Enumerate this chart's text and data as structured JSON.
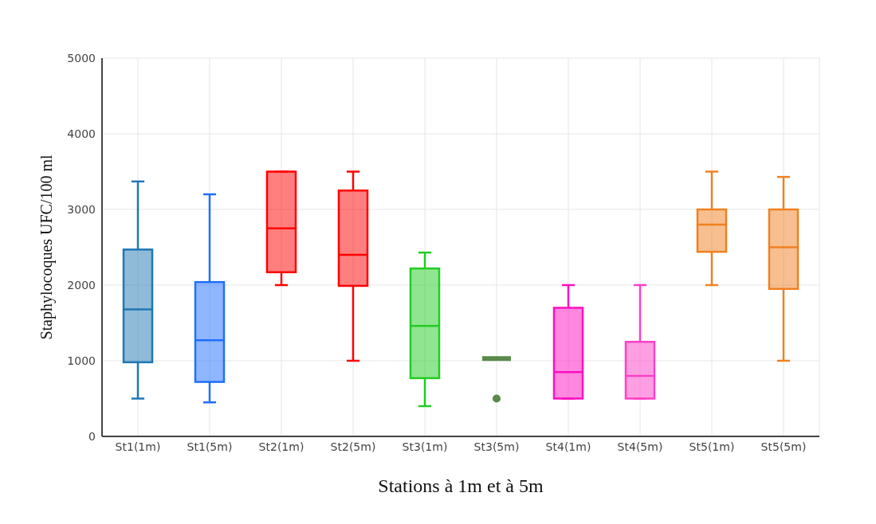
{
  "chart_data": {
    "type": "box",
    "xlabel": "Stations à 1m et à 5m",
    "ylabel": "Staphylocoques UFC/100 ml",
    "categories": [
      "St1(1m)",
      "St1(5m)",
      "St2(1m)",
      "St2(5m)",
      "St3(1m)",
      "St3(5m)",
      "St4(1m)",
      "St4(5m)",
      "St5(1m)",
      "St5(5m)"
    ],
    "colors": [
      "#1f77b4",
      "#1f6fff",
      "#ff0000",
      "#ff0000",
      "#22cc22",
      "#5a8a4a",
      "#ff10c0",
      "#ff40c8",
      "#f08020",
      "#f08020"
    ],
    "boxes": [
      {
        "low": 500,
        "q1": 980,
        "median": 1680,
        "q3": 2470,
        "high": 3370
      },
      {
        "low": 450,
        "q1": 720,
        "median": 1270,
        "q3": 2040,
        "high": 3200
      },
      {
        "low": 2000,
        "q1": 2170,
        "median": 2750,
        "q3": 3500,
        "high": 3500
      },
      {
        "low": 1000,
        "q1": 1990,
        "median": 2400,
        "q3": 3250,
        "high": 3500
      },
      {
        "low": 400,
        "q1": 770,
        "median": 1460,
        "q3": 2220,
        "high": 2430
      },
      {
        "low": 1030,
        "q1": 1030,
        "median": 1030,
        "q3": 1030,
        "high": 1030,
        "outliers": [
          500
        ]
      },
      {
        "low": 500,
        "q1": 500,
        "median": 850,
        "q3": 1700,
        "high": 2000
      },
      {
        "low": 500,
        "q1": 500,
        "median": 800,
        "q3": 1250,
        "high": 2000
      },
      {
        "low": 2000,
        "q1": 2440,
        "median": 2800,
        "q3": 3000,
        "high": 3500
      },
      {
        "low": 1000,
        "q1": 1950,
        "median": 2500,
        "q3": 3000,
        "high": 3430
      }
    ],
    "ylim": [
      0,
      5000
    ],
    "yticks": [
      0,
      1000,
      2000,
      3000,
      4000,
      5000
    ],
    "grid": true
  }
}
